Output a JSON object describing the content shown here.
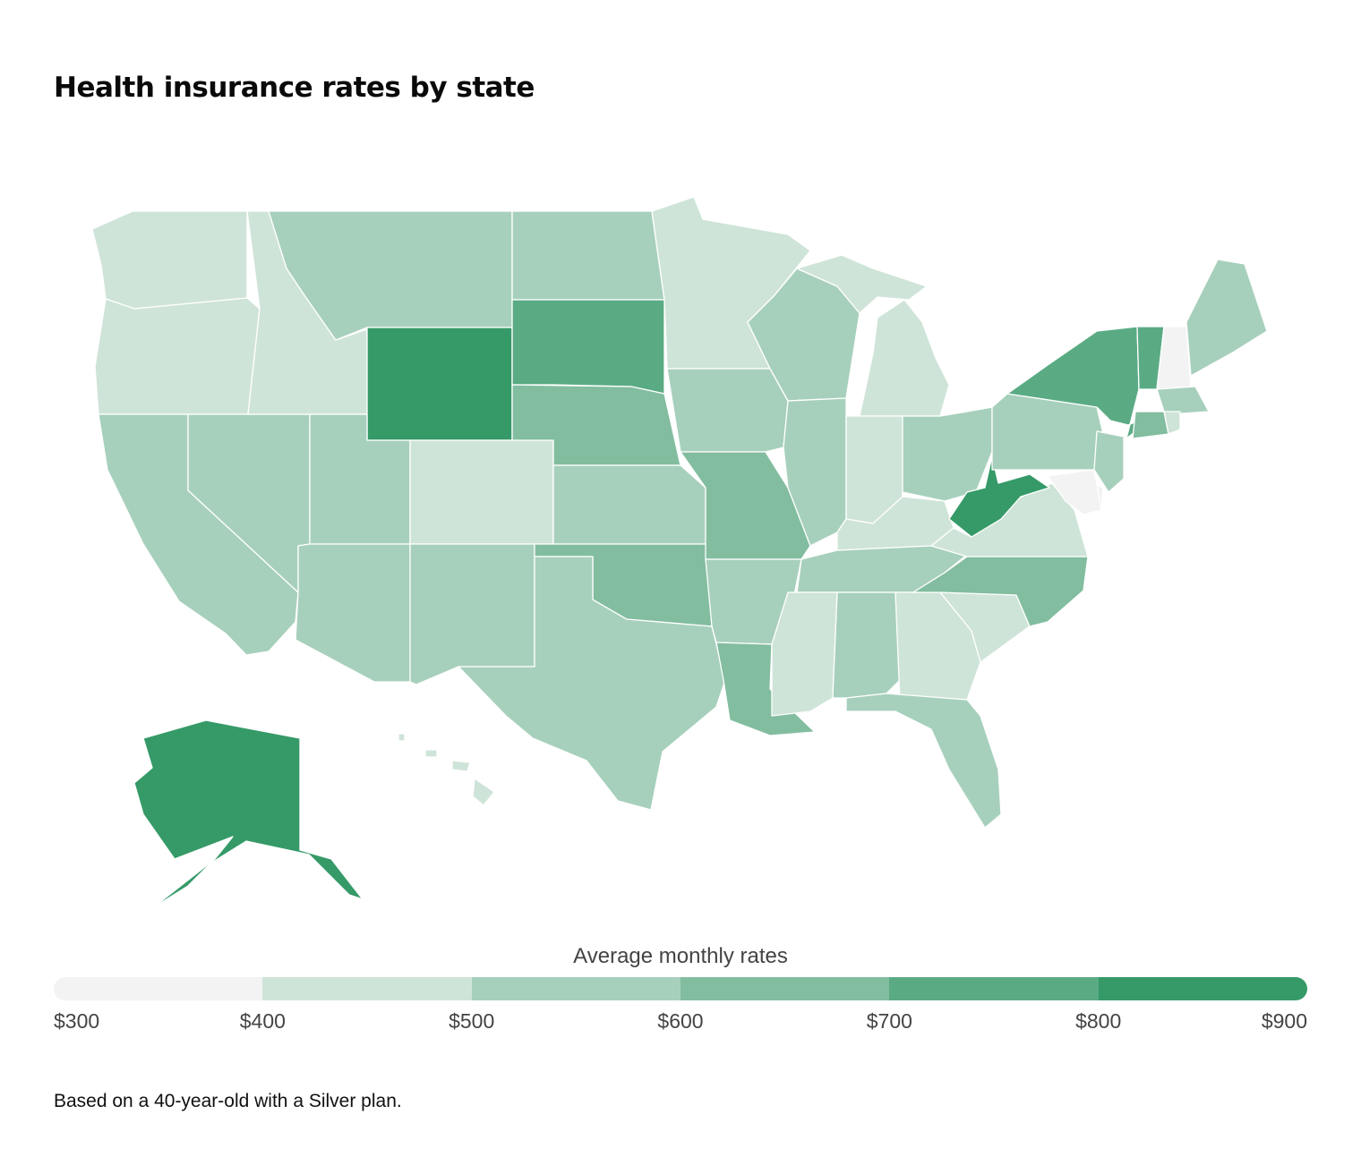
{
  "title": "Health insurance rates by state",
  "legend": {
    "title": "Average monthly rates",
    "ticks": [
      "$300",
      "$400",
      "$500",
      "$600",
      "$700",
      "$800",
      "$900"
    ],
    "bins": [
      {
        "min": 300,
        "max": 400,
        "color": "#f3f3f3"
      },
      {
        "min": 400,
        "max": 500,
        "color": "#cfe4d8"
      },
      {
        "min": 500,
        "max": 600,
        "color": "#a7d0bc"
      },
      {
        "min": 600,
        "max": 700,
        "color": "#82bd9f"
      },
      {
        "min": 700,
        "max": 800,
        "color": "#5aab84"
      },
      {
        "min": 800,
        "max": 900,
        "color": "#359a68"
      }
    ]
  },
  "note": "Based on a 40-year-old with a Silver plan.",
  "map_data": {
    "type": "choropleth",
    "metric": "Average monthly rates",
    "state_bins": {
      "WA": "$400-$500",
      "OR": "$400-$500",
      "ID": "$400-$500",
      "CO": "$400-$500",
      "MN": "$400-$500",
      "MI": "$400-$500",
      "IN": "$400-$500",
      "KY": "$400-$500",
      "VA": "$400-$500",
      "MS": "$400-$500",
      "GA": "$400-$500",
      "SC": "$400-$500",
      "HI": "$400-$500",
      "RI": "$400-$500",
      "MT": "$500-$600",
      "ND": "$500-$600",
      "CA": "$500-$600",
      "NV": "$500-$600",
      "UT": "$500-$600",
      "AZ": "$500-$600",
      "NM": "$500-$600",
      "TX": "$500-$600",
      "KS": "$500-$600",
      "IA": "$500-$600",
      "WI": "$500-$600",
      "IL": "$500-$600",
      "AR": "$500-$600",
      "TN": "$500-$600",
      "AL": "$500-$600",
      "FL": "$500-$600",
      "OH": "$500-$600",
      "PA": "$500-$600",
      "NJ": "$500-$600",
      "ME": "$500-$600",
      "MA": "$500-$600",
      "NE": "$600-$700",
      "OK": "$600-$700",
      "MO": "$600-$700",
      "LA": "$600-$700",
      "NC": "$600-$700",
      "CT": "$600-$700",
      "SD": "$700-$800",
      "NY": "$700-$800",
      "VT": "$700-$800",
      "WY": "$800-$900",
      "WV": "$800-$900",
      "AK": "$800-$900",
      "NH": "$300-$400",
      "MD": "$300-$400",
      "DE": "$300-$400"
    }
  }
}
